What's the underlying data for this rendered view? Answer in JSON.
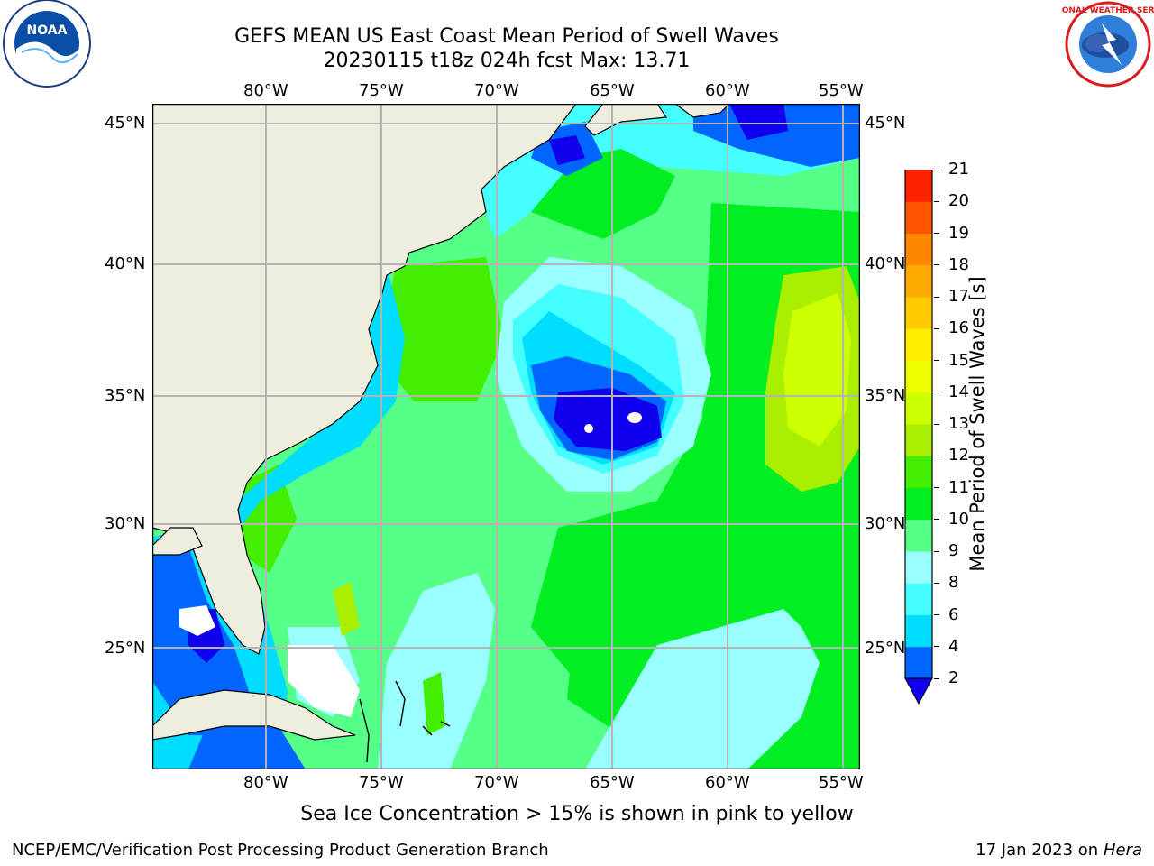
{
  "header": {
    "title_line1": "GEFS MEAN US East Coast Mean Period of Swell Waves",
    "title_line2": "20230115 t18z 024h fcst   Max: 13.71"
  },
  "logos": {
    "left": "noaa-logo",
    "right": "national-weather-service-logo"
  },
  "axes": {
    "lon_ticks": [
      "80°W",
      "75°W",
      "70°W",
      "65°W",
      "60°W",
      "55°W"
    ],
    "lat_ticks_left": [
      "45°N",
      "40°N",
      "35°N",
      "30°N",
      "25°N"
    ],
    "lat_ticks_right": [
      "45°N",
      "40°N",
      "35°N",
      "30°N",
      "25°N"
    ]
  },
  "colorbar": {
    "label": "Mean Period of Swell Waves [s]",
    "ticks": [
      "2",
      "4",
      "6",
      "8",
      "9",
      "10",
      "11",
      "12",
      "13",
      "14",
      "15",
      "16",
      "17",
      "18",
      "19",
      "20",
      "21"
    ],
    "colors": [
      "#0066ff",
      "#00ddff",
      "#44ffff",
      "#99ffff",
      "#55ff88",
      "#00ee22",
      "#44ee00",
      "#aaee00",
      "#ccff00",
      "#eeff00",
      "#ffee00",
      "#ffcc00",
      "#ffaa00",
      "#ff8800",
      "#ff5500",
      "#ff2200"
    ],
    "under_color": "#1100ee"
  },
  "map_colors": {
    "land": "#efeddd",
    "ocean_base": "#55ff88",
    "grid": "#b4b4b4"
  },
  "footer": {
    "note": "Sea Ice Concentration > 15% is shown in pink to yellow",
    "credit": "NCEP/EMC/Verification Post Processing Product Generation Branch",
    "date": "17 Jan 2023 on ",
    "host": "Hera"
  }
}
